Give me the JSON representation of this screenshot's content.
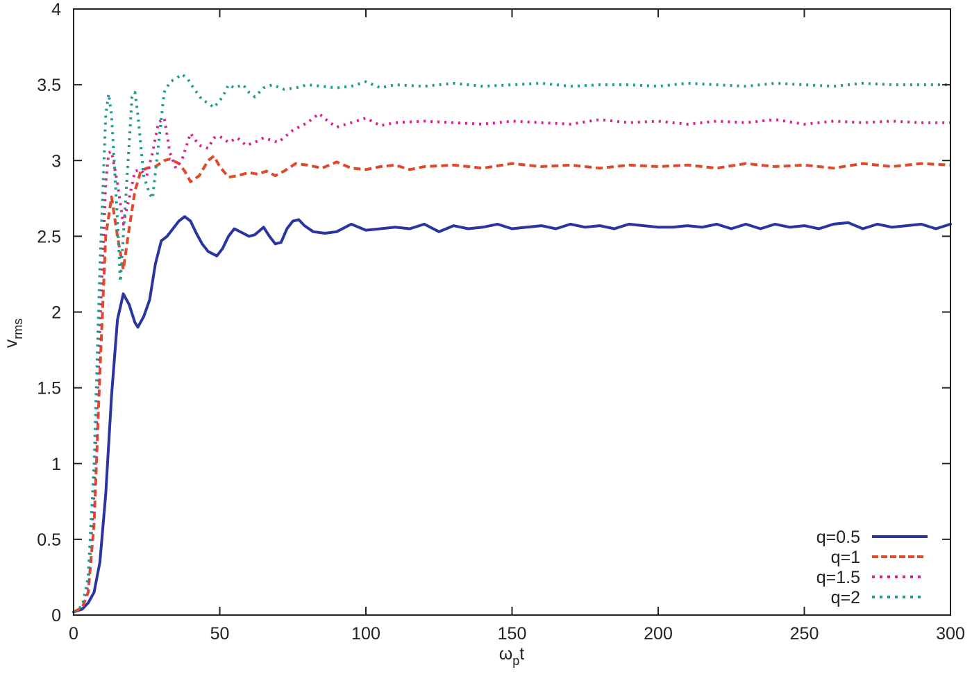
{
  "chart_data": {
    "type": "line",
    "title": "",
    "xlabel": "ωpt",
    "xlabel_main": "ω",
    "xlabel_sub": "p",
    "xlabel_tail": "t",
    "ylabel": "vrms",
    "ylabel_main": "v",
    "ylabel_sub": "rms",
    "xlim": [
      0,
      300
    ],
    "ylim": [
      0,
      4
    ],
    "xticks": [
      0,
      50,
      100,
      150,
      200,
      250,
      300
    ],
    "xtick_labels": [
      "0",
      "50",
      "100",
      "150",
      "200",
      "250",
      "300"
    ],
    "yticks": [
      0,
      0.5,
      1,
      1.5,
      2,
      2.5,
      3,
      3.5,
      4
    ],
    "ytick_labels": [
      "0",
      "0.5",
      "1",
      "1.5",
      "2",
      "2.5",
      "3",
      "3.5",
      "4"
    ],
    "grid": false,
    "legend_position": "lower right",
    "series": [
      {
        "name": "q=0.5",
        "color": "#2b35a0",
        "style": "solid",
        "x": [
          0,
          3,
          5,
          7,
          9,
          11,
          13,
          15,
          17,
          19,
          21,
          22,
          24,
          26,
          28,
          30,
          32,
          34,
          36,
          38,
          40,
          42,
          44,
          46,
          49,
          51,
          53,
          55,
          58,
          60,
          62,
          65,
          67,
          69,
          71,
          73,
          75,
          77,
          79,
          82,
          86,
          90,
          95,
          100,
          105,
          110,
          115,
          120,
          125,
          130,
          135,
          140,
          145,
          150,
          155,
          160,
          165,
          170,
          175,
          180,
          185,
          190,
          195,
          200,
          205,
          210,
          215,
          220,
          225,
          230,
          235,
          240,
          245,
          250,
          255,
          260,
          265,
          270,
          275,
          280,
          285,
          290,
          295,
          300
        ],
        "values": [
          0.02,
          0.04,
          0.08,
          0.15,
          0.35,
          0.8,
          1.45,
          1.95,
          2.12,
          2.05,
          1.93,
          1.9,
          1.97,
          2.08,
          2.32,
          2.47,
          2.5,
          2.55,
          2.6,
          2.63,
          2.6,
          2.52,
          2.45,
          2.4,
          2.37,
          2.42,
          2.5,
          2.55,
          2.52,
          2.5,
          2.51,
          2.56,
          2.5,
          2.45,
          2.46,
          2.55,
          2.6,
          2.61,
          2.57,
          2.53,
          2.52,
          2.53,
          2.58,
          2.54,
          2.55,
          2.56,
          2.55,
          2.58,
          2.53,
          2.57,
          2.55,
          2.56,
          2.58,
          2.55,
          2.56,
          2.57,
          2.55,
          2.58,
          2.56,
          2.57,
          2.55,
          2.58,
          2.57,
          2.56,
          2.56,
          2.57,
          2.56,
          2.58,
          2.55,
          2.58,
          2.55,
          2.58,
          2.56,
          2.57,
          2.55,
          2.58,
          2.59,
          2.55,
          2.58,
          2.56,
          2.57,
          2.58,
          2.55,
          2.58
        ]
      },
      {
        "name": "q=1",
        "color": "#e0492a",
        "style": "dashed",
        "x": [
          0,
          3,
          5,
          7,
          9,
          11,
          13,
          15,
          17,
          19,
          21,
          23,
          25,
          28,
          31,
          33,
          36,
          38,
          40,
          43,
          46,
          48,
          50,
          53,
          56,
          60,
          63,
          66,
          69,
          72,
          76,
          80,
          85,
          90,
          95,
          100,
          105,
          110,
          115,
          120,
          130,
          140,
          150,
          160,
          170,
          180,
          190,
          200,
          210,
          220,
          230,
          240,
          250,
          260,
          270,
          280,
          290,
          300
        ],
        "values": [
          0.02,
          0.05,
          0.15,
          0.6,
          1.6,
          2.5,
          2.76,
          2.5,
          2.28,
          2.55,
          2.8,
          2.93,
          2.95,
          2.96,
          3.0,
          3.01,
          2.98,
          2.93,
          2.86,
          2.9,
          3.0,
          3.03,
          2.96,
          2.89,
          2.9,
          2.92,
          2.91,
          2.93,
          2.9,
          2.93,
          2.98,
          2.97,
          2.95,
          2.99,
          2.95,
          2.94,
          2.96,
          2.97,
          2.94,
          2.96,
          2.97,
          2.95,
          2.98,
          2.96,
          2.97,
          2.95,
          2.97,
          2.96,
          2.97,
          2.95,
          2.98,
          2.96,
          2.97,
          2.95,
          2.98,
          2.96,
          2.98,
          2.97
        ]
      },
      {
        "name": "q=1.5",
        "color": "#e01f8f",
        "style": "dotted",
        "x": [
          0,
          3,
          5,
          7,
          9,
          11,
          12,
          13,
          15,
          17,
          19,
          21,
          23,
          25,
          27,
          29,
          31,
          33,
          35,
          37,
          40,
          43,
          46,
          48,
          50,
          53,
          56,
          59,
          62,
          65,
          70,
          75,
          80,
          84,
          87,
          90,
          95,
          100,
          105,
          110,
          120,
          130,
          140,
          150,
          160,
          170,
          180,
          190,
          200,
          210,
          220,
          230,
          240,
          250,
          260,
          270,
          280,
          290,
          300
        ],
        "values": [
          0.02,
          0.06,
          0.2,
          0.8,
          1.9,
          2.85,
          3.05,
          3.06,
          2.85,
          2.58,
          2.75,
          2.93,
          2.94,
          2.9,
          3.05,
          3.25,
          3.28,
          3.05,
          2.95,
          3.0,
          3.18,
          3.1,
          3.08,
          3.15,
          3.16,
          3.12,
          3.15,
          3.1,
          3.12,
          3.15,
          3.12,
          3.2,
          3.25,
          3.31,
          3.26,
          3.22,
          3.25,
          3.28,
          3.23,
          3.25,
          3.26,
          3.25,
          3.24,
          3.26,
          3.25,
          3.24,
          3.27,
          3.25,
          3.26,
          3.24,
          3.26,
          3.25,
          3.27,
          3.24,
          3.26,
          3.25,
          3.26,
          3.25,
          3.25
        ]
      },
      {
        "name": "q=2",
        "color": "#1f9b8f",
        "style": "dotted",
        "x": [
          0,
          3,
          5,
          7,
          9,
          11,
          12,
          13,
          15,
          16,
          18,
          20,
          21,
          22,
          24,
          26,
          27,
          29,
          31,
          33,
          35,
          37,
          39,
          41,
          44,
          46,
          48,
          51,
          53,
          55,
          58,
          60,
          62,
          65,
          68,
          72,
          76,
          80,
          85,
          90,
          95,
          100,
          105,
          110,
          120,
          130,
          140,
          150,
          160,
          170,
          180,
          190,
          200,
          210,
          220,
          230,
          240,
          250,
          260,
          270,
          280,
          290,
          300
        ],
        "values": [
          0.02,
          0.06,
          0.25,
          1.0,
          2.3,
          3.3,
          3.44,
          3.3,
          2.6,
          2.2,
          2.8,
          3.42,
          3.45,
          3.3,
          2.9,
          2.78,
          2.75,
          3.1,
          3.45,
          3.52,
          3.54,
          3.57,
          3.54,
          3.48,
          3.4,
          3.38,
          3.35,
          3.42,
          3.5,
          3.48,
          3.5,
          3.45,
          3.42,
          3.48,
          3.5,
          3.47,
          3.48,
          3.5,
          3.49,
          3.48,
          3.49,
          3.52,
          3.48,
          3.5,
          3.49,
          3.51,
          3.49,
          3.5,
          3.51,
          3.49,
          3.5,
          3.5,
          3.49,
          3.51,
          3.5,
          3.49,
          3.51,
          3.5,
          3.49,
          3.51,
          3.5,
          3.5,
          3.5
        ]
      }
    ]
  }
}
